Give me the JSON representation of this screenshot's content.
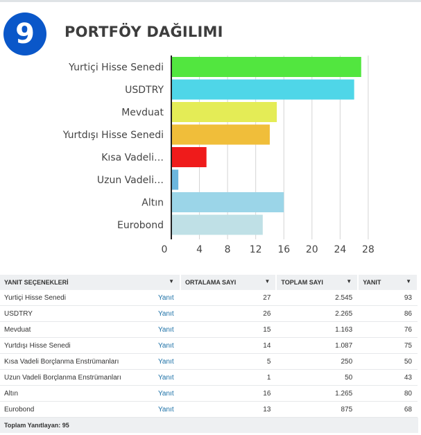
{
  "header": {
    "number": "9",
    "title": "PORTFÖY DAĞILIMI"
  },
  "chart_data": {
    "type": "bar",
    "orientation": "horizontal",
    "categories": [
      "Yurtiçi Hisse Senedi",
      "USDTRY",
      "Mevduat",
      "Yurtdışı Hisse Senedi",
      "Kısa Vadeli…",
      "Uzun Vadeli…",
      "Altın",
      "Eurobond"
    ],
    "values": [
      27,
      26,
      15,
      14,
      5,
      1,
      16,
      13
    ],
    "colors": [
      "#52e63f",
      "#4fd6e8",
      "#e4ec56",
      "#f0be3a",
      "#ef1b1b",
      "#6cb6dd",
      "#9bd5e8",
      "#bfe0e6"
    ],
    "xticks": [
      "0",
      "4",
      "8",
      "12",
      "16",
      "20",
      "24",
      "28"
    ],
    "xlim": [
      0,
      28
    ],
    "grid": true
  },
  "table": {
    "headers": [
      "YANIT SEÇENEKLERİ",
      "ORTALAMA SAYI",
      "TOPLAM SAYI",
      "YANIT"
    ],
    "rows": [
      {
        "option": "Yurtiçi Hisse Senedi",
        "link": "Yanıt",
        "avg": "27",
        "total": "2.545",
        "responses": "93"
      },
      {
        "option": "USDTRY",
        "link": "Yanıt",
        "avg": "26",
        "total": "2.265",
        "responses": "86"
      },
      {
        "option": "Mevduat",
        "link": "Yanıt",
        "avg": "15",
        "total": "1.163",
        "responses": "76"
      },
      {
        "option": "Yurtdışı Hisse Senedi",
        "link": "Yanıt",
        "avg": "14",
        "total": "1.087",
        "responses": "75"
      },
      {
        "option": "Kısa Vadeli Borçlanma Enstrümanları",
        "link": "Yanıt",
        "avg": "5",
        "total": "250",
        "responses": "50"
      },
      {
        "option": "Uzun Vadeli Borçlanma Enstrümanları",
        "link": "Yanıt",
        "avg": "1",
        "total": "50",
        "responses": "43"
      },
      {
        "option": "Altın",
        "link": "Yanıt",
        "avg": "16",
        "total": "1.265",
        "responses": "80"
      },
      {
        "option": "Eurobond",
        "link": "Yanıt",
        "avg": "13",
        "total": "875",
        "responses": "68"
      }
    ],
    "footer": "Toplam Yanıtlayan: 95"
  }
}
